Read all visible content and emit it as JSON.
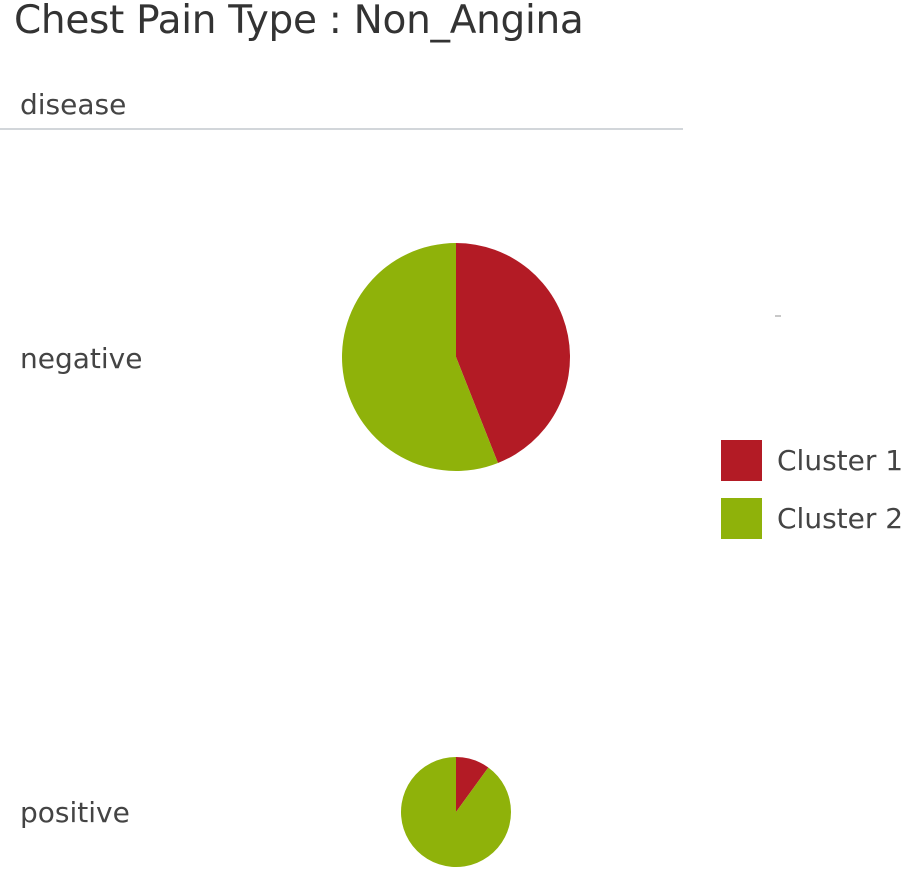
{
  "title": "Chest Pain Type : Non_Angina",
  "chart_data": {
    "type": "pie",
    "title": "Chest Pain Type : Non_Angina",
    "row_header": "disease",
    "rows": [
      {
        "label": "negative",
        "slices": [
          {
            "series": "Cluster 1",
            "share": 0.44
          },
          {
            "series": "Cluster 2",
            "share": 0.56
          }
        ],
        "relative_size": 1.0
      },
      {
        "label": "positive",
        "slices": [
          {
            "series": "Cluster 1",
            "share": 0.1
          },
          {
            "series": "Cluster 2",
            "share": 0.9
          }
        ],
        "relative_size": 0.48
      }
    ],
    "legend": {
      "position": "right",
      "entries": [
        {
          "label": "Cluster 1",
          "color": "#b31b25"
        },
        {
          "label": "Cluster 2",
          "color": "#8fb20a"
        }
      ]
    }
  }
}
